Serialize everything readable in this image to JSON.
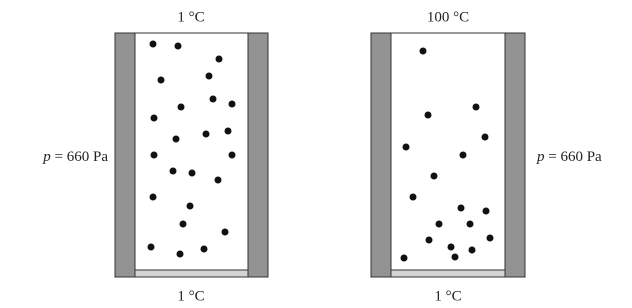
{
  "left_container": {
    "top_temperature": "1 °C",
    "bottom_temperature": "1 °C",
    "pressure": {
      "symbol": "p",
      "text": "= 660 Pa"
    }
  },
  "right_container": {
    "top_temperature": "100 °C",
    "bottom_temperature": "1 °C",
    "pressure": {
      "symbol": "p",
      "text": "= 660 Pa"
    }
  }
}
